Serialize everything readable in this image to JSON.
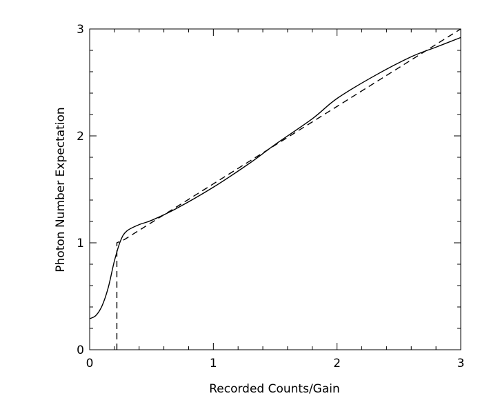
{
  "chart_data": {
    "type": "line",
    "title": "",
    "xlabel": "Recorded Counts/Gain",
    "ylabel": "Photon Number Expectation",
    "xlim": [
      0,
      3
    ],
    "ylim": [
      0,
      3
    ],
    "x_tick_labels": [
      "0",
      "1",
      "2",
      "3"
    ],
    "y_tick_labels": [
      "0",
      "1",
      "2",
      "3"
    ],
    "grid": false,
    "legend": "none",
    "colors": {
      "axes": "#000000",
      "series": "#000000"
    },
    "series": [
      {
        "style": "solid",
        "x": [
          0.0,
          0.05,
          0.1,
          0.15,
          0.2,
          0.25,
          0.3,
          0.4,
          0.5,
          0.7,
          1.0,
          1.3,
          1.5,
          1.8,
          2.0,
          2.3,
          2.6,
          2.8,
          3.0
        ],
        "y": [
          0.29,
          0.32,
          0.41,
          0.58,
          0.83,
          1.02,
          1.11,
          1.17,
          1.21,
          1.32,
          1.52,
          1.75,
          1.92,
          2.16,
          2.35,
          2.56,
          2.74,
          2.83,
          2.92
        ]
      },
      {
        "style": "dashed",
        "x": [
          0.22,
          0.22,
          0.28,
          3.0
        ],
        "y": [
          0.0,
          1.0,
          1.03,
          3.0
        ]
      }
    ]
  }
}
